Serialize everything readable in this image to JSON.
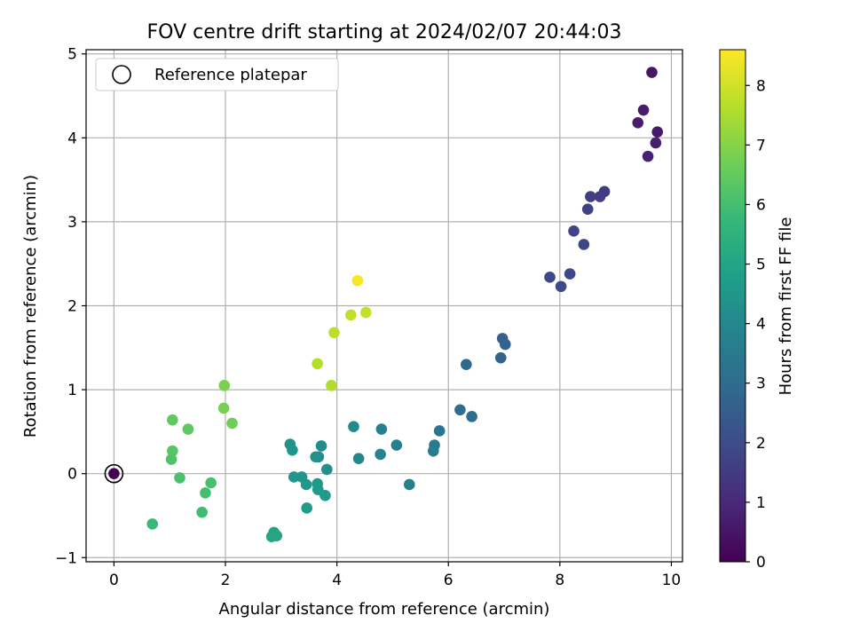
{
  "chart_data": {
    "type": "scatter",
    "title": "FOV centre drift starting at 2024/02/07 20:44:03",
    "xlabel": "Angular distance from reference (arcmin)",
    "ylabel": "Rotation from reference (arcmin)",
    "xlim": [
      -0.5,
      10.2
    ],
    "ylim": [
      -1.05,
      5.05
    ],
    "xticks": [
      "0",
      "2",
      "4",
      "6",
      "8",
      "10"
    ],
    "yticks": [
      "−1",
      "0",
      "1",
      "2",
      "3",
      "4",
      "5"
    ],
    "grid": true,
    "legend": {
      "position": "top-left",
      "entries": [
        "Reference platepar"
      ]
    },
    "colorbar": {
      "label": "Hours from first FF file",
      "range": [
        0,
        8.6
      ],
      "ticks": [
        "0",
        "1",
        "2",
        "3",
        "4",
        "5",
        "6",
        "7",
        "8"
      ],
      "colormap": "viridis"
    },
    "reference_point": {
      "x": 0.0,
      "y": 0.0,
      "hours": 0.0
    },
    "points": [
      {
        "x": 9.65,
        "y": 4.78,
        "hours": 0.55
      },
      {
        "x": 9.5,
        "y": 4.33,
        "hours": 0.65
      },
      {
        "x": 9.4,
        "y": 4.18,
        "hours": 0.7
      },
      {
        "x": 9.75,
        "y": 4.07,
        "hours": 0.6
      },
      {
        "x": 9.72,
        "y": 3.94,
        "hours": 0.75
      },
      {
        "x": 9.58,
        "y": 3.78,
        "hours": 0.8
      },
      {
        "x": 8.8,
        "y": 3.36,
        "hours": 1.5
      },
      {
        "x": 8.55,
        "y": 3.3,
        "hours": 1.6
      },
      {
        "x": 8.72,
        "y": 3.3,
        "hours": 1.55
      },
      {
        "x": 8.5,
        "y": 3.15,
        "hours": 1.7
      },
      {
        "x": 8.25,
        "y": 2.89,
        "hours": 1.8
      },
      {
        "x": 8.43,
        "y": 2.73,
        "hours": 1.85
      },
      {
        "x": 8.18,
        "y": 2.38,
        "hours": 1.9
      },
      {
        "x": 7.82,
        "y": 2.34,
        "hours": 1.95
      },
      {
        "x": 8.02,
        "y": 2.23,
        "hours": 2.0
      },
      {
        "x": 6.97,
        "y": 1.61,
        "hours": 2.6
      },
      {
        "x": 7.02,
        "y": 1.54,
        "hours": 2.65
      },
      {
        "x": 6.94,
        "y": 1.38,
        "hours": 2.7
      },
      {
        "x": 6.32,
        "y": 1.3,
        "hours": 2.9
      },
      {
        "x": 6.21,
        "y": 0.76,
        "hours": 3.1
      },
      {
        "x": 6.42,
        "y": 0.68,
        "hours": 3.05
      },
      {
        "x": 5.84,
        "y": 0.51,
        "hours": 3.35
      },
      {
        "x": 5.75,
        "y": 0.34,
        "hours": 3.5
      },
      {
        "x": 5.73,
        "y": 0.27,
        "hours": 3.55
      },
      {
        "x": 5.07,
        "y": 0.34,
        "hours": 3.75
      },
      {
        "x": 5.3,
        "y": -0.13,
        "hours": 3.7
      },
      {
        "x": 4.8,
        "y": 0.53,
        "hours": 3.8
      },
      {
        "x": 4.78,
        "y": 0.23,
        "hours": 3.9
      },
      {
        "x": 4.39,
        "y": 0.18,
        "hours": 4.0
      },
      {
        "x": 4.3,
        "y": 0.56,
        "hours": 4.05
      },
      {
        "x": 3.72,
        "y": 0.33,
        "hours": 4.2
      },
      {
        "x": 3.67,
        "y": 0.2,
        "hours": 4.25
      },
      {
        "x": 3.62,
        "y": 0.2,
        "hours": 4.3
      },
      {
        "x": 3.82,
        "y": 0.05,
        "hours": 4.3
      },
      {
        "x": 3.16,
        "y": 0.35,
        "hours": 4.4
      },
      {
        "x": 3.2,
        "y": 0.28,
        "hours": 4.45
      },
      {
        "x": 3.23,
        "y": -0.04,
        "hours": 4.5
      },
      {
        "x": 3.37,
        "y": -0.04,
        "hours": 4.55
      },
      {
        "x": 3.45,
        "y": -0.13,
        "hours": 4.6
      },
      {
        "x": 3.65,
        "y": -0.12,
        "hours": 4.6
      },
      {
        "x": 3.66,
        "y": -0.19,
        "hours": 4.65
      },
      {
        "x": 3.79,
        "y": -0.26,
        "hours": 4.65
      },
      {
        "x": 3.46,
        "y": -0.41,
        "hours": 4.75
      },
      {
        "x": 2.87,
        "y": -0.7,
        "hours": 4.95
      },
      {
        "x": 2.92,
        "y": -0.74,
        "hours": 5.0
      },
      {
        "x": 2.83,
        "y": -0.75,
        "hours": 5.05
      },
      {
        "x": 0.69,
        "y": -0.6,
        "hours": 5.8
      },
      {
        "x": 1.58,
        "y": -0.46,
        "hours": 5.9
      },
      {
        "x": 1.64,
        "y": -0.23,
        "hours": 6.0
      },
      {
        "x": 1.74,
        "y": -0.11,
        "hours": 6.05
      },
      {
        "x": 1.18,
        "y": -0.05,
        "hours": 6.1
      },
      {
        "x": 1.03,
        "y": 0.17,
        "hours": 6.2
      },
      {
        "x": 1.05,
        "y": 0.27,
        "hours": 6.3
      },
      {
        "x": 1.33,
        "y": 0.53,
        "hours": 6.4
      },
      {
        "x": 1.05,
        "y": 0.64,
        "hours": 6.5
      },
      {
        "x": 2.12,
        "y": 0.6,
        "hours": 6.7
      },
      {
        "x": 1.97,
        "y": 0.78,
        "hours": 6.8
      },
      {
        "x": 1.98,
        "y": 1.05,
        "hours": 6.85
      },
      {
        "x": 3.65,
        "y": 1.31,
        "hours": 7.65
      },
      {
        "x": 3.9,
        "y": 1.05,
        "hours": 7.6
      },
      {
        "x": 3.95,
        "y": 1.68,
        "hours": 7.7
      },
      {
        "x": 4.25,
        "y": 1.89,
        "hours": 7.8
      },
      {
        "x": 4.52,
        "y": 1.92,
        "hours": 7.85
      },
      {
        "x": 4.37,
        "y": 2.3,
        "hours": 8.5
      }
    ]
  }
}
